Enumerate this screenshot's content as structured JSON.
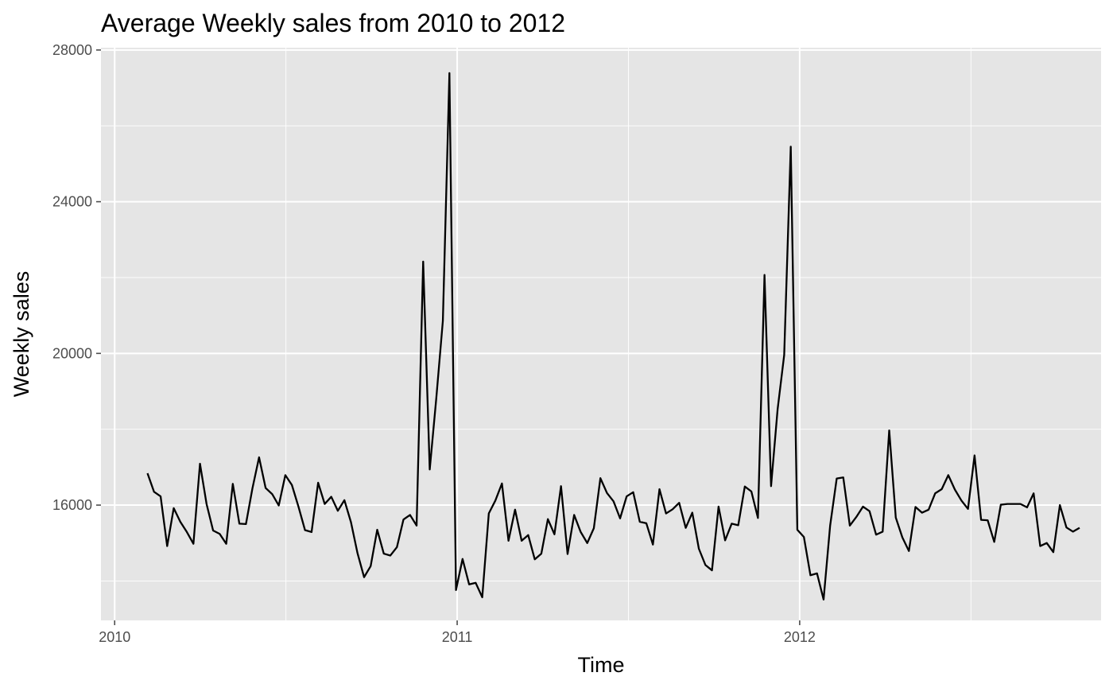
{
  "chart_data": {
    "type": "line",
    "title": "Average Weekly sales from 2010 to 2012",
    "xlabel": "Time",
    "ylabel": "Weekly sales",
    "xlim": [
      2009.96,
      2012.88
    ],
    "ylim": [
      12960,
      28060
    ],
    "x_ticks": [
      2010,
      2011,
      2012
    ],
    "x_tick_labels": [
      "2010",
      "2011",
      "2012"
    ],
    "y_ticks": [
      16000,
      20000,
      24000,
      28000
    ],
    "y_tick_labels": [
      "16000",
      "20000",
      "24000",
      "28000"
    ],
    "grid": true,
    "legend": "none",
    "colors": {
      "panel": "#e5e5e5",
      "grid": "#ffffff",
      "line": "#000000",
      "tick": "#4d4d4d"
    },
    "series": [
      {
        "name": "Weekly sales",
        "start": 2010.0958,
        "step": 0.019165,
        "values": [
          16840,
          16350,
          16230,
          14920,
          15920,
          15560,
          15290,
          14980,
          17090,
          16030,
          15330,
          15240,
          14980,
          16560,
          15510,
          15500,
          16450,
          17260,
          16450,
          16290,
          15990,
          16790,
          16530,
          15960,
          15340,
          15290,
          16590,
          16030,
          16220,
          15850,
          16130,
          15550,
          14730,
          14100,
          14390,
          15350,
          14720,
          14670,
          14890,
          15620,
          15740,
          15460,
          22420,
          16940,
          18820,
          20860,
          27390,
          13760,
          14580,
          13910,
          13950,
          13570,
          15780,
          16120,
          16570,
          15060,
          15880,
          15060,
          15210,
          14570,
          14720,
          15630,
          15230,
          16500,
          14710,
          15740,
          15290,
          15000,
          15390,
          16710,
          16320,
          16100,
          15650,
          16230,
          16340,
          15560,
          15520,
          14960,
          16420,
          15780,
          15890,
          16060,
          15400,
          15800,
          14850,
          14420,
          14280,
          15960,
          15070,
          15510,
          15470,
          16490,
          16360,
          15660,
          22070,
          16500,
          18530,
          19960,
          25450,
          15350,
          15160,
          14150,
          14200,
          13510,
          15460,
          16700,
          16730,
          15460,
          15690,
          15960,
          15840,
          15220,
          15300,
          17970,
          15670,
          15150,
          14790,
          15950,
          15800,
          15880,
          16310,
          16420,
          16790,
          16410,
          16120,
          15900,
          17310,
          15610,
          15600,
          15030,
          16010,
          16030,
          16030,
          16030,
          15940,
          16310,
          14920,
          15000,
          14760,
          16000,
          15410,
          15300,
          15400
        ]
      }
    ]
  }
}
